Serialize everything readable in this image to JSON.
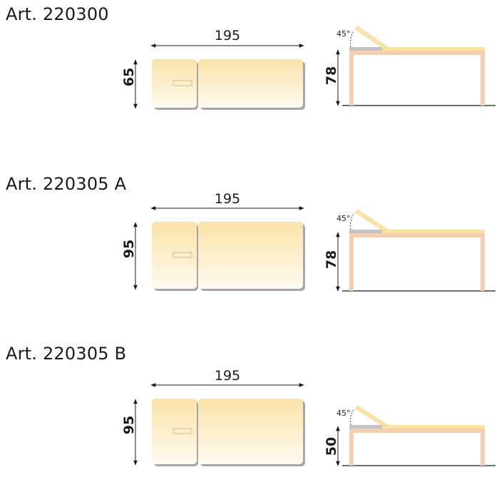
{
  "colors": {
    "cushion_top": "#fbe3a8",
    "cushion_bottom": "#fefaf0",
    "shadow": "#a7a7a7",
    "wood": "#f3cfad",
    "grey_pad": "#c4c4c4",
    "line": "#1a1a1a"
  },
  "articles": [
    {
      "title": "Art. 220300",
      "length_label": "195",
      "width_label": "65",
      "height_label": "78",
      "angle_label": "45°"
    },
    {
      "title": "Art. 220305 A",
      "length_label": "195",
      "width_label": "95",
      "height_label": "78",
      "angle_label": "45°"
    },
    {
      "title": "Art. 220305 B",
      "length_label": "195",
      "width_label": "95",
      "height_label": "50",
      "angle_label": "45°"
    }
  ]
}
